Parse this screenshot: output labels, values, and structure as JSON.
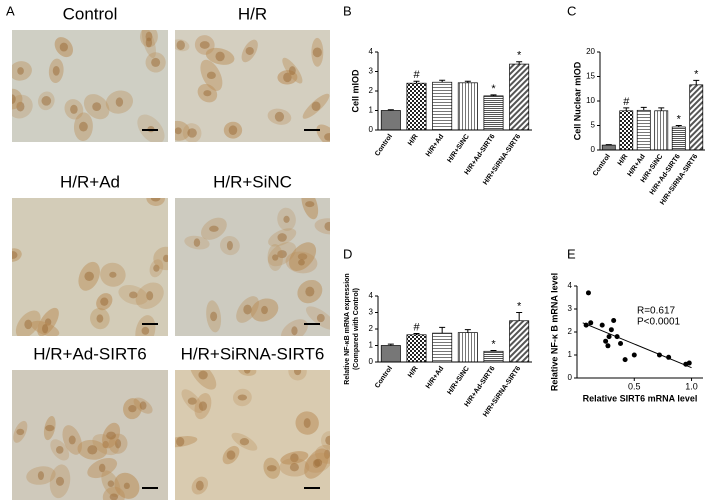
{
  "panels": {
    "a": {
      "label": "A",
      "images": [
        "Control",
        "H/R",
        "H/R+Ad",
        "H/R+SiNC",
        "H/R+Ad-SIRT6",
        "H/R+SiRNA-SIRT6"
      ]
    }
  },
  "chart_data": [
    {
      "type": "bar",
      "panel": "B",
      "ylabel": [
        "Cell mIOD"
      ],
      "categories": [
        "Control",
        "H/R",
        "H/R+Ad",
        "H/R+SiNC",
        "H/R+Ad-SIRT6",
        "H/R+SiRNA-SIRT6"
      ],
      "values": [
        1.0,
        2.4,
        2.45,
        2.42,
        1.75,
        3.38
      ],
      "errors": [
        0.04,
        0.1,
        0.1,
        0.08,
        0.05,
        0.12
      ],
      "markers": [
        null,
        "#",
        null,
        null,
        "*",
        "*"
      ],
      "ylim": [
        0,
        4
      ],
      "yticks": [
        0,
        1,
        2,
        3,
        4
      ]
    },
    {
      "type": "bar",
      "panel": "C",
      "ylabel": [
        "Cell Nuclear mIOD"
      ],
      "categories": [
        "Control",
        "H/R",
        "H/R+Ad",
        "H/R+SiNC",
        "H/R+Ad-SIRT6",
        "H/R+SiRNA-SIRT6"
      ],
      "values": [
        1.0,
        8.0,
        8.1,
        8.0,
        4.7,
        13.3
      ],
      "errors": [
        0.1,
        0.6,
        0.6,
        0.6,
        0.3,
        0.9
      ],
      "markers": [
        null,
        "#",
        null,
        null,
        "*",
        "*"
      ],
      "ylim": [
        0,
        20
      ],
      "yticks": [
        0,
        5,
        10,
        15,
        20
      ]
    },
    {
      "type": "bar",
      "panel": "D",
      "ylabel": [
        "Relative NF-κB mRNA expression",
        "(Compared with Control)"
      ],
      "categories": [
        "Control",
        "H/R",
        "H/R+Ad",
        "H/R+SiNC",
        "H/R+Ad-SIRT6",
        "H/R+SiRNA-SIRT6"
      ],
      "values": [
        1.0,
        1.65,
        1.75,
        1.78,
        0.65,
        2.5
      ],
      "errors": [
        0.08,
        0.08,
        0.35,
        0.18,
        0.05,
        0.5
      ],
      "markers": [
        null,
        "#",
        null,
        null,
        "*",
        "*"
      ],
      "ylim": [
        0,
        4
      ],
      "yticks": [
        0,
        1,
        2,
        3,
        4
      ]
    },
    {
      "type": "scatter",
      "panel": "E",
      "xlabel": "Relative SIRT6 mRNA level",
      "ylabel": [
        "Relative NF-κ B mRNA level"
      ],
      "annotations": [
        "R=0.617",
        "P<0.0001"
      ],
      "x": [
        0.08,
        0.1,
        0.12,
        0.22,
        0.25,
        0.27,
        0.28,
        0.3,
        0.32,
        0.35,
        0.38,
        0.42,
        0.5,
        0.72,
        0.8,
        0.95,
        0.98
      ],
      "y": [
        2.3,
        3.7,
        2.4,
        2.3,
        1.6,
        1.4,
        1.8,
        2.1,
        2.5,
        1.8,
        1.5,
        0.8,
        1.0,
        1.0,
        0.9,
        0.6,
        0.65
      ],
      "fit": {
        "x": [
          0.05,
          1.0
        ],
        "y": [
          2.4,
          0.45
        ]
      },
      "xlim": [
        0,
        1.1
      ],
      "ylim": [
        0,
        4
      ],
      "xticks": [
        0.5,
        {
          "value": 1,
          "label": "1.0"
        }
      ],
      "yticks": [
        0,
        1,
        2,
        3,
        4
      ]
    }
  ]
}
